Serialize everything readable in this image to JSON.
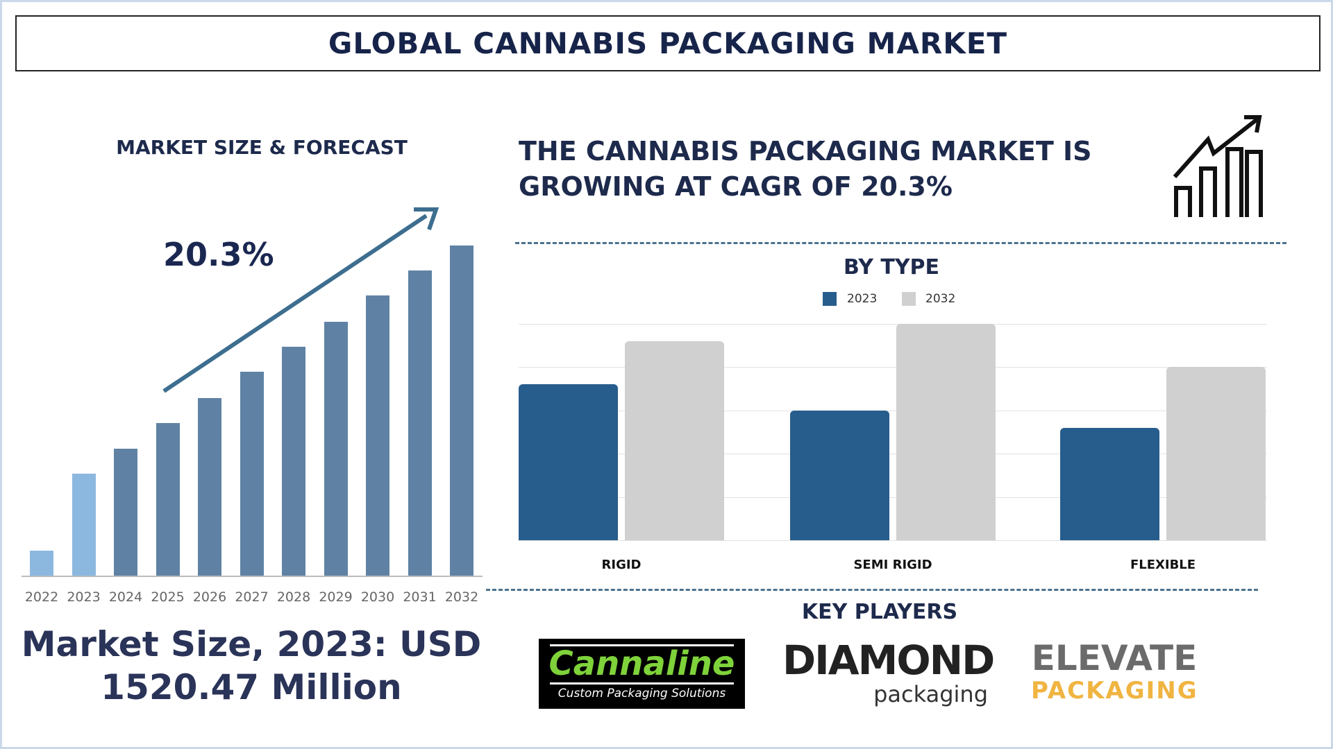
{
  "title": "GLOBAL CANNABIS PACKAGING MARKET",
  "left": {
    "heading": "MARKET SIZE & FORECAST",
    "cagr_label": "20.3%",
    "market_size_line1": "Market Size, 2023: USD",
    "market_size_line2": "1520.47 Million"
  },
  "right": {
    "headline_line1": "THE CANNABIS PACKAGING MARKET IS",
    "headline_line2": "GROWING AT CAGR OF 20.3%",
    "icon": "growth-chart-icon",
    "key_players_title": "KEY PLAYERS",
    "key_players": [
      {
        "name": "Cannaline",
        "tagline": "Custom Packaging Solutions"
      },
      {
        "name": "DIAMOND",
        "tagline": "packaging"
      },
      {
        "name": "ELEVATE",
        "tagline": "PACKAGING"
      }
    ]
  },
  "colors": {
    "title": "#17244a",
    "bar_2022": "#8cb8e0",
    "bar_2023": "#8cb8e0",
    "bar_forecast": "#5f82a4",
    "arrow": "#3d6e8f",
    "series_2023": "#275d8c",
    "series_2032": "#d0d0d0"
  },
  "chart_data": [
    {
      "type": "bar",
      "title": "MARKET SIZE & FORECAST",
      "categories": [
        "2022",
        "2023",
        "2024",
        "2025",
        "2026",
        "2027",
        "2028",
        "2029",
        "2030",
        "2031",
        "2032"
      ],
      "values": [
        370,
        1520.47,
        1900,
        2280,
        2650,
        3040,
        3420,
        3790,
        4180,
        4560,
        4930
      ],
      "annotation": "20.3%",
      "grid": false,
      "value_labels": false
    },
    {
      "type": "bar",
      "title": "BY TYPE",
      "categories": [
        "RIGID",
        "SEMI RIGID",
        "FLEXIBLE"
      ],
      "series": [
        {
          "name": "2023",
          "values": [
            3.6,
            3.0,
            2.6
          ]
        },
        {
          "name": "2032",
          "values": [
            4.6,
            5.0,
            4.0
          ]
        }
      ],
      "ylim": [
        0,
        5
      ],
      "grid": true,
      "legend": "top"
    }
  ]
}
